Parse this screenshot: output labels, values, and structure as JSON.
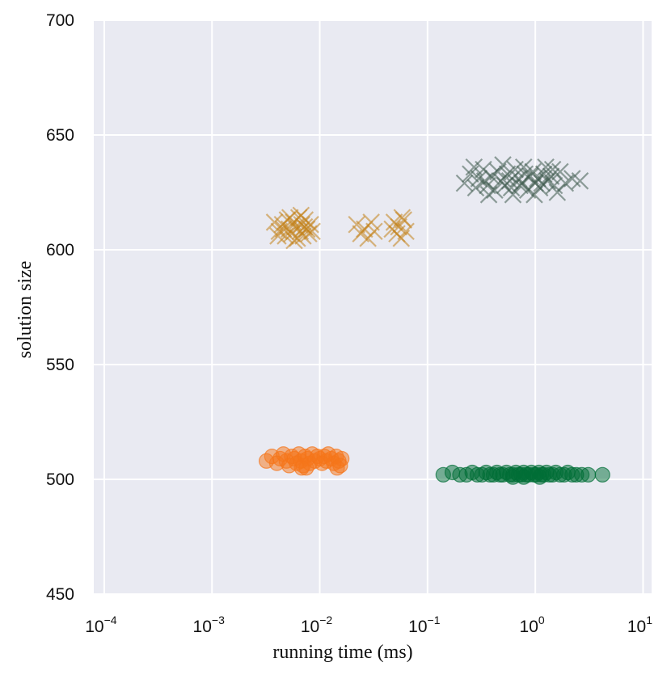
{
  "chart_data": {
    "type": "scatter",
    "xlabel": "running time (ms)",
    "ylabel": "solution size",
    "xscale": "log",
    "xlim": [
      8e-05,
      12
    ],
    "ylim": [
      450,
      700
    ],
    "grid": true,
    "legend": "none",
    "background_color": "#e9eaf2",
    "grid_color": "#ffffff",
    "x_ticks": [
      {
        "base": "10",
        "exp": "−4",
        "value": 0.0001
      },
      {
        "base": "10",
        "exp": "−3",
        "value": 0.001
      },
      {
        "base": "10",
        "exp": "−2",
        "value": 0.01
      },
      {
        "base": "10",
        "exp": "−1",
        "value": 0.1
      },
      {
        "base": "10",
        "exp": "0",
        "value": 1
      },
      {
        "base": "10",
        "exp": "1",
        "value": 10
      }
    ],
    "y_ticks": [
      "450",
      "500",
      "550",
      "600",
      "650",
      "700"
    ],
    "series": [
      {
        "marker": "x",
        "color": "#c2811a",
        "points": [
          [
            0.0038,
            612
          ],
          [
            0.0042,
            608
          ],
          [
            0.0045,
            611
          ],
          [
            0.0048,
            606
          ],
          [
            0.005,
            613
          ],
          [
            0.0052,
            609
          ],
          [
            0.0055,
            607
          ],
          [
            0.0057,
            612
          ],
          [
            0.006,
            610
          ],
          [
            0.0062,
            605
          ],
          [
            0.0064,
            614
          ],
          [
            0.0066,
            608
          ],
          [
            0.0068,
            611
          ],
          [
            0.007,
            606
          ],
          [
            0.0073,
            613
          ],
          [
            0.0076,
            609
          ],
          [
            0.0079,
            607
          ],
          [
            0.0082,
            611
          ],
          [
            0.0046,
            609
          ],
          [
            0.0058,
            604
          ],
          [
            0.0067,
            615
          ],
          [
            0.0085,
            608
          ],
          [
            0.0041,
            606
          ],
          [
            0.0053,
            614
          ],
          [
            0.0072,
            610
          ],
          [
            0.022,
            611
          ],
          [
            0.024,
            607
          ],
          [
            0.026,
            609
          ],
          [
            0.028,
            605
          ],
          [
            0.03,
            612
          ],
          [
            0.032,
            608
          ],
          [
            0.049,
            612
          ],
          [
            0.052,
            607
          ],
          [
            0.054,
            610
          ],
          [
            0.057,
            605
          ],
          [
            0.06,
            613
          ],
          [
            0.063,
            608
          ],
          [
            0.047,
            609
          ],
          [
            0.058,
            614
          ]
        ]
      },
      {
        "marker": "x",
        "color": "#3e5a4c",
        "points": [
          [
            0.22,
            629
          ],
          [
            0.25,
            633
          ],
          [
            0.28,
            627
          ],
          [
            0.3,
            631
          ],
          [
            0.33,
            635
          ],
          [
            0.36,
            628
          ],
          [
            0.39,
            632
          ],
          [
            0.42,
            626
          ],
          [
            0.45,
            634
          ],
          [
            0.48,
            630
          ],
          [
            0.52,
            628
          ],
          [
            0.55,
            633
          ],
          [
            0.6,
            627
          ],
          [
            0.65,
            635
          ],
          [
            0.7,
            631
          ],
          [
            0.75,
            629
          ],
          [
            0.8,
            633
          ],
          [
            0.85,
            626
          ],
          [
            0.9,
            632
          ],
          [
            0.95,
            634
          ],
          [
            1.0,
            629
          ],
          [
            1.05,
            631
          ],
          [
            1.1,
            627
          ],
          [
            1.2,
            633
          ],
          [
            1.3,
            630
          ],
          [
            1.4,
            632
          ],
          [
            1.5,
            628
          ],
          [
            1.7,
            634
          ],
          [
            1.9,
            629
          ],
          [
            2.2,
            631
          ],
          [
            2.6,
            630
          ],
          [
            0.27,
            636
          ],
          [
            0.37,
            624
          ],
          [
            0.5,
            637
          ],
          [
            0.62,
            624
          ],
          [
            0.78,
            636
          ],
          [
            0.98,
            624
          ],
          [
            1.25,
            636
          ],
          [
            1.6,
            625
          ],
          [
            0.34,
            630
          ],
          [
            0.58,
            630
          ],
          [
            0.72,
            628
          ],
          [
            1.15,
            629
          ],
          [
            1.45,
            635
          ]
        ]
      },
      {
        "marker": "o",
        "color": "#f5751a",
        "points": [
          [
            0.0032,
            508
          ],
          [
            0.0036,
            510
          ],
          [
            0.004,
            507
          ],
          [
            0.0043,
            509
          ],
          [
            0.0046,
            511
          ],
          [
            0.0049,
            508
          ],
          [
            0.0052,
            506
          ],
          [
            0.0055,
            510
          ],
          [
            0.0058,
            509
          ],
          [
            0.0061,
            507
          ],
          [
            0.0064,
            511
          ],
          [
            0.0067,
            508
          ],
          [
            0.007,
            506
          ],
          [
            0.0073,
            510
          ],
          [
            0.0077,
            509
          ],
          [
            0.0081,
            507
          ],
          [
            0.0085,
            511
          ],
          [
            0.009,
            508
          ],
          [
            0.0095,
            510
          ],
          [
            0.01,
            509
          ],
          [
            0.0105,
            507
          ],
          [
            0.011,
            510
          ],
          [
            0.0115,
            508
          ],
          [
            0.012,
            511
          ],
          [
            0.0128,
            509
          ],
          [
            0.0135,
            507
          ],
          [
            0.0142,
            510
          ],
          [
            0.015,
            508
          ],
          [
            0.016,
            509
          ],
          [
            0.0145,
            505
          ],
          [
            0.0155,
            506
          ],
          [
            0.0068,
            505
          ],
          [
            0.0075,
            505
          ]
        ]
      },
      {
        "marker": "o",
        "color": "#006e36",
        "points": [
          [
            0.14,
            502
          ],
          [
            0.17,
            503
          ],
          [
            0.2,
            502
          ],
          [
            0.23,
            502
          ],
          [
            0.26,
            503
          ],
          [
            0.29,
            502
          ],
          [
            0.32,
            502
          ],
          [
            0.35,
            503
          ],
          [
            0.38,
            502
          ],
          [
            0.41,
            502
          ],
          [
            0.44,
            503
          ],
          [
            0.47,
            502
          ],
          [
            0.5,
            502
          ],
          [
            0.54,
            503
          ],
          [
            0.58,
            502
          ],
          [
            0.62,
            502
          ],
          [
            0.66,
            503
          ],
          [
            0.7,
            502
          ],
          [
            0.74,
            502
          ],
          [
            0.78,
            503
          ],
          [
            0.82,
            502
          ],
          [
            0.87,
            502
          ],
          [
            0.92,
            503
          ],
          [
            0.97,
            502
          ],
          [
            1.02,
            502
          ],
          [
            1.08,
            503
          ],
          [
            1.14,
            502
          ],
          [
            1.2,
            502
          ],
          [
            1.27,
            503
          ],
          [
            1.35,
            502
          ],
          [
            1.45,
            502
          ],
          [
            1.55,
            503
          ],
          [
            1.7,
            502
          ],
          [
            1.85,
            502
          ],
          [
            2.0,
            503
          ],
          [
            2.2,
            502
          ],
          [
            2.4,
            502
          ],
          [
            2.7,
            502
          ],
          [
            3.1,
            502
          ],
          [
            4.2,
            502
          ],
          [
            0.62,
            501
          ],
          [
            0.78,
            501
          ],
          [
            1.1,
            501
          ]
        ]
      }
    ]
  }
}
